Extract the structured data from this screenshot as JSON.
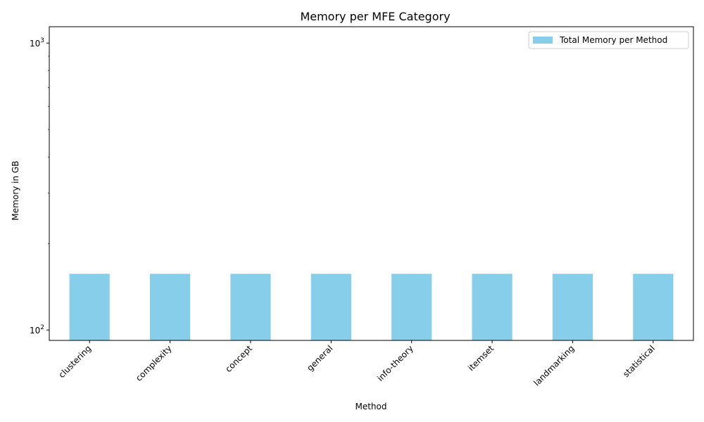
{
  "chart_data": {
    "type": "bar",
    "title": "Memory per MFE Category",
    "xlabel": "Method",
    "ylabel": "Memory in GB",
    "yscale": "log",
    "ylim": [
      92,
      1140
    ],
    "y_major_ticks": [
      {
        "value": 100,
        "base": "10",
        "exp": "2"
      },
      {
        "value": 1000,
        "base": "10",
        "exp": "3"
      }
    ],
    "categories": [
      "clustering",
      "complexity",
      "concept",
      "general",
      "info-theory",
      "itemset",
      "landmarking",
      "statistical"
    ],
    "series": [
      {
        "name": "Total Memory per Method",
        "color": "#87ceeb",
        "values": [
          157,
          157,
          157,
          157,
          157,
          157,
          157,
          157
        ]
      }
    ],
    "legend_position": "top-right",
    "grid": false
  }
}
